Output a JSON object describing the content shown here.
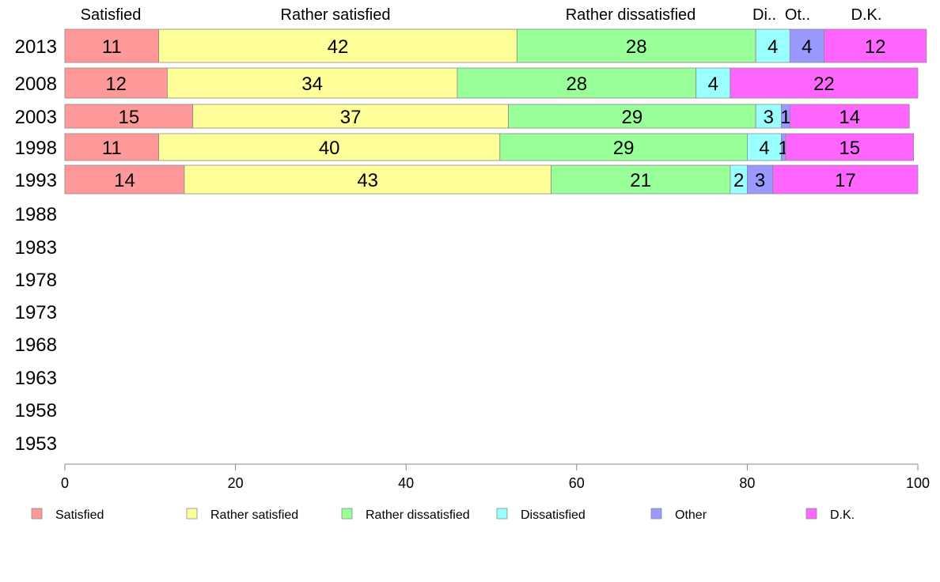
{
  "chart_data": {
    "type": "bar",
    "orientation": "horizontal",
    "stacked": true,
    "categories": [
      "2013",
      "2008",
      "2003",
      "1998",
      "1993",
      "1988",
      "1983",
      "1978",
      "1973",
      "1968",
      "1963",
      "1958",
      "1953"
    ],
    "series": [
      {
        "name": "Satisfied",
        "color": "#ff9999",
        "values": [
          11,
          12,
          15,
          11,
          14,
          null,
          null,
          null,
          null,
          null,
          null,
          null,
          null
        ]
      },
      {
        "name": "Rather satisfied",
        "color": "#ffff99",
        "values": [
          42,
          34,
          37,
          40,
          43,
          null,
          null,
          null,
          null,
          null,
          null,
          null,
          null
        ]
      },
      {
        "name": "Rather dissatisfied",
        "color": "#99ff99",
        "values": [
          28,
          28,
          29,
          29,
          21,
          null,
          null,
          null,
          null,
          null,
          null,
          null,
          null
        ]
      },
      {
        "name": "Dissatisfied",
        "color": "#99ffff",
        "values": [
          4,
          4,
          3,
          4,
          2,
          null,
          null,
          null,
          null,
          null,
          null,
          null,
          null
        ]
      },
      {
        "name": "Other",
        "color": "#9999ff",
        "values": [
          4,
          0,
          1,
          0.5,
          3,
          null,
          null,
          null,
          null,
          null,
          null,
          null,
          null
        ]
      },
      {
        "name": "D.K.",
        "color": "#ff66ff",
        "values": [
          12,
          22,
          14,
          15,
          17,
          null,
          null,
          null,
          null,
          null,
          null,
          null,
          null
        ]
      }
    ],
    "value_labels": [
      [
        "11",
        "42",
        "28",
        "4",
        "4",
        "12"
      ],
      [
        "12",
        "34",
        "28",
        "4",
        "",
        "22"
      ],
      [
        "15",
        "37",
        "29",
        "3",
        "1",
        "14"
      ],
      [
        "11",
        "40",
        "29",
        "4",
        "1",
        "15"
      ],
      [
        "14",
        "43",
        "21",
        "2",
        "3",
        "17"
      ]
    ],
    "column_headers": [
      "Satisfied",
      "Rather satisfied",
      "Rather dissatisfied",
      "Di..",
      "Ot..",
      "D.K."
    ],
    "x_ticks": [
      "0",
      "20",
      "40",
      "60",
      "80",
      "100"
    ],
    "xlim": [
      0,
      100
    ],
    "legend": {
      "placement": "bottom"
    },
    "grid": false
  }
}
